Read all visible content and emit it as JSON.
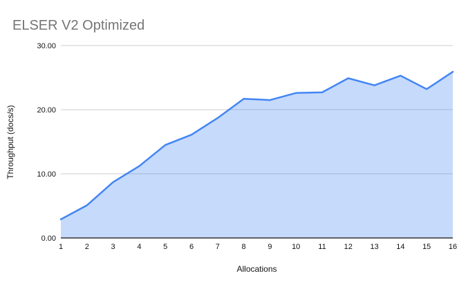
{
  "chart_data": {
    "type": "area",
    "title": "ELSER V2 Optimized",
    "xlabel": "Allocations",
    "ylabel": "Throughput (docs/s)",
    "x": [
      1,
      2,
      3,
      4,
      5,
      6,
      7,
      8,
      9,
      10,
      11,
      12,
      13,
      14,
      15,
      16
    ],
    "series": [
      {
        "name": "Throughput (docs/s)",
        "values": [
          2.9,
          5.1,
          8.7,
          11.2,
          14.5,
          16.1,
          18.7,
          21.7,
          21.5,
          22.6,
          22.7,
          24.9,
          23.8,
          25.3,
          23.2,
          25.9
        ]
      }
    ],
    "xlim": [
      1,
      16
    ],
    "ylim": [
      0,
      30
    ],
    "yticks": [
      0,
      10,
      20,
      30
    ],
    "ytick_decimals": 2,
    "xtick_labels": [
      "1",
      "2",
      "3",
      "4",
      "5",
      "6",
      "7",
      "8",
      "9",
      "10",
      "11",
      "12",
      "13",
      "14",
      "15",
      "16"
    ],
    "grid": true,
    "legend": "none",
    "colors": {
      "line": "#4285f4",
      "fill": "rgba(66,133,244,0.30)",
      "gridline": "#cccccc",
      "axis_line": "#333333",
      "tick_text": "#111111",
      "title_text": "#757575",
      "axis_title_text": "#111111",
      "background": "#ffffff"
    }
  }
}
